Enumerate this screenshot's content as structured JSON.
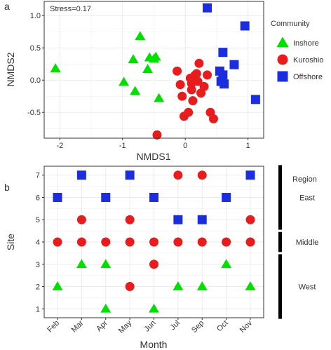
{
  "figure": {
    "panel_a_label": "a",
    "panel_b_label": "b"
  },
  "chart_data": [
    {
      "type": "scatter",
      "panel": "a",
      "annotation": "Stress=0.17",
      "xlabel": "NMDS1",
      "ylabel": "NMDS2",
      "xlim": [
        -2.25,
        1.25
      ],
      "ylim": [
        -0.9,
        1.22
      ],
      "xticks": [
        -2,
        -1,
        0,
        1
      ],
      "yticks": [
        -0.5,
        0.0,
        0.5,
        1.0
      ],
      "ytick_labels": [
        "-0.5",
        "0.0",
        "0.5",
        "1.0"
      ],
      "grid": true,
      "legend_title": "Community",
      "legend_position": "right",
      "series": [
        {
          "name": "Inshore",
          "marker": "triangle",
          "color": "#00e000",
          "points": [
            [
              -2.07,
              0.18
            ],
            [
              -0.98,
              -0.03
            ],
            [
              -0.83,
              0.32
            ],
            [
              -0.8,
              -0.17
            ],
            [
              -0.72,
              0.68
            ],
            [
              -0.6,
              0.17
            ],
            [
              -0.57,
              0.35
            ],
            [
              -0.5,
              0.33
            ],
            [
              -0.47,
              0.36
            ],
            [
              -0.42,
              -0.28
            ]
          ]
        },
        {
          "name": "Kuroshio",
          "marker": "circle",
          "color": "#e81c1c",
          "points": [
            [
              -0.45,
              -0.85
            ],
            [
              -0.13,
              0.14
            ],
            [
              -0.08,
              -0.07
            ],
            [
              -0.05,
              -0.25
            ],
            [
              -0.02,
              -0.56
            ],
            [
              0.05,
              -0.5
            ],
            [
              0.08,
              0.03
            ],
            [
              0.1,
              -0.05
            ],
            [
              0.1,
              -0.15
            ],
            [
              0.12,
              -0.32
            ],
            [
              0.15,
              0.07
            ],
            [
              0.18,
              0.1
            ],
            [
              0.2,
              -0.02
            ],
            [
              0.22,
              0.26
            ],
            [
              0.25,
              -0.2
            ],
            [
              0.3,
              -0.1
            ],
            [
              0.35,
              0.08
            ],
            [
              0.4,
              -0.5
            ],
            [
              0.45,
              -0.6
            ]
          ]
        },
        {
          "name": "Offshore",
          "marker": "square",
          "color": "#1a2ee0",
          "points": [
            [
              0.35,
              1.12
            ],
            [
              0.55,
              0.14
            ],
            [
              0.57,
              -0.02
            ],
            [
              0.6,
              0.43
            ],
            [
              0.6,
              0.08
            ],
            [
              0.62,
              -0.06
            ],
            [
              0.78,
              0.24
            ],
            [
              0.95,
              0.84
            ],
            [
              1.12,
              -0.3
            ]
          ]
        }
      ]
    },
    {
      "type": "scatter",
      "panel": "b",
      "xlabel": "Month",
      "ylabel": "Site",
      "categories": [
        "Feb",
        "Mar",
        "Apr",
        "May",
        "Jun",
        "Jul",
        "Sep",
        "Oct",
        "Nov"
      ],
      "ylim": [
        0.6,
        7.4
      ],
      "yticks": [
        1,
        2,
        3,
        4,
        5,
        6,
        7
      ],
      "grid": true,
      "series": [
        {
          "name": "Inshore",
          "marker": "triangle",
          "color": "#00e000",
          "points": [
            [
              "Feb",
              2
            ],
            [
              "Mar",
              3
            ],
            [
              "Apr",
              1
            ],
            [
              "Apr",
              3
            ],
            [
              "Jun",
              1
            ],
            [
              "Jul",
              2
            ],
            [
              "Sep",
              2
            ],
            [
              "Oct",
              3
            ],
            [
              "Nov",
              2
            ]
          ]
        },
        {
          "name": "Kuroshio",
          "marker": "circle",
          "color": "#e81c1c",
          "points": [
            [
              "Feb",
              4
            ],
            [
              "Mar",
              4
            ],
            [
              "Mar",
              5
            ],
            [
              "Apr",
              4
            ],
            [
              "May",
              2
            ],
            [
              "May",
              4
            ],
            [
              "May",
              5
            ],
            [
              "Jun",
              3
            ],
            [
              "Jun",
              4
            ],
            [
              "Jul",
              4
            ],
            [
              "Jul",
              7
            ],
            [
              "Sep",
              4
            ],
            [
              "Sep",
              7
            ],
            [
              "Oct",
              4
            ],
            [
              "Nov",
              4
            ],
            [
              "Nov",
              5
            ]
          ]
        },
        {
          "name": "Offshore",
          "marker": "square",
          "color": "#1a2ee0",
          "points": [
            [
              "Feb",
              6
            ],
            [
              "Mar",
              7
            ],
            [
              "Apr",
              6
            ],
            [
              "May",
              7
            ],
            [
              "Jun",
              6
            ],
            [
              "Jul",
              5
            ],
            [
              "Sep",
              5
            ],
            [
              "Oct",
              6
            ],
            [
              "Nov",
              7
            ]
          ]
        }
      ],
      "region_bracket": {
        "header": "Region",
        "groups": [
          {
            "label": "East",
            "from": 5,
            "to": 7
          },
          {
            "label": "Middle",
            "from": 4,
            "to": 4
          },
          {
            "label": "West",
            "from": 1,
            "to": 3
          }
        ]
      }
    }
  ]
}
